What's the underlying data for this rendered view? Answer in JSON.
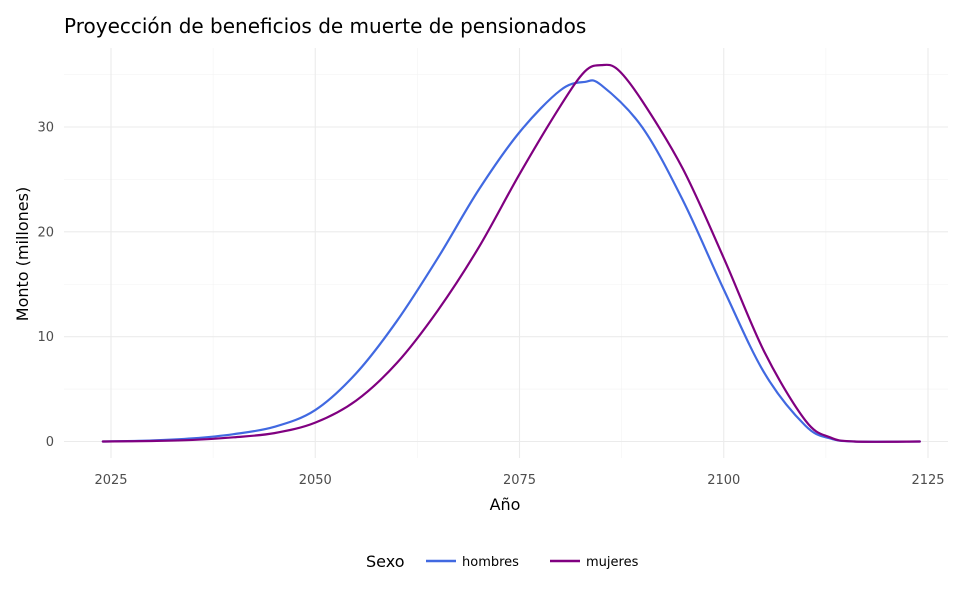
{
  "chart_data": {
    "type": "line",
    "title": "Proyección de beneficios de muerte de pensionados",
    "xlabel": "Año",
    "ylabel": "Monto (millones)",
    "xlim": [
      2024,
      2124
    ],
    "ylim": [
      0,
      36
    ],
    "x_ticks": [
      2025,
      2050,
      2075,
      2100,
      2125
    ],
    "y_ticks": [
      0,
      10,
      20,
      30
    ],
    "grid": true,
    "legend": {
      "title": "Sexo",
      "position": "bottom"
    },
    "series": [
      {
        "name": "hombres",
        "color": "#4169E1",
        "points": [
          [
            2024,
            0
          ],
          [
            2030,
            0.1
          ],
          [
            2035,
            0.3
          ],
          [
            2040,
            0.7
          ],
          [
            2045,
            1.4
          ],
          [
            2050,
            3.0
          ],
          [
            2055,
            6.5
          ],
          [
            2060,
            11.5
          ],
          [
            2065,
            17.5
          ],
          [
            2070,
            24.0
          ],
          [
            2075,
            29.5
          ],
          [
            2080,
            33.5
          ],
          [
            2083,
            34.3
          ],
          [
            2085,
            34.0
          ],
          [
            2090,
            30.0
          ],
          [
            2095,
            23.0
          ],
          [
            2100,
            14.5
          ],
          [
            2105,
            6.5
          ],
          [
            2110,
            1.5
          ],
          [
            2113,
            0.3
          ],
          [
            2116,
            0
          ],
          [
            2124,
            0
          ]
        ]
      },
      {
        "name": "mujeres",
        "color": "#800080",
        "points": [
          [
            2024,
            0
          ],
          [
            2030,
            0.05
          ],
          [
            2035,
            0.15
          ],
          [
            2040,
            0.4
          ],
          [
            2045,
            0.8
          ],
          [
            2050,
            1.8
          ],
          [
            2055,
            3.9
          ],
          [
            2060,
            7.5
          ],
          [
            2065,
            12.5
          ],
          [
            2070,
            18.5
          ],
          [
            2075,
            25.5
          ],
          [
            2080,
            32.0
          ],
          [
            2083,
            35.3
          ],
          [
            2085,
            35.9
          ],
          [
            2087,
            35.5
          ],
          [
            2090,
            32.5
          ],
          [
            2095,
            26.0
          ],
          [
            2100,
            17.5
          ],
          [
            2105,
            8.5
          ],
          [
            2110,
            2.0
          ],
          [
            2113,
            0.4
          ],
          [
            2116,
            0
          ],
          [
            2124,
            0
          ]
        ]
      }
    ]
  }
}
